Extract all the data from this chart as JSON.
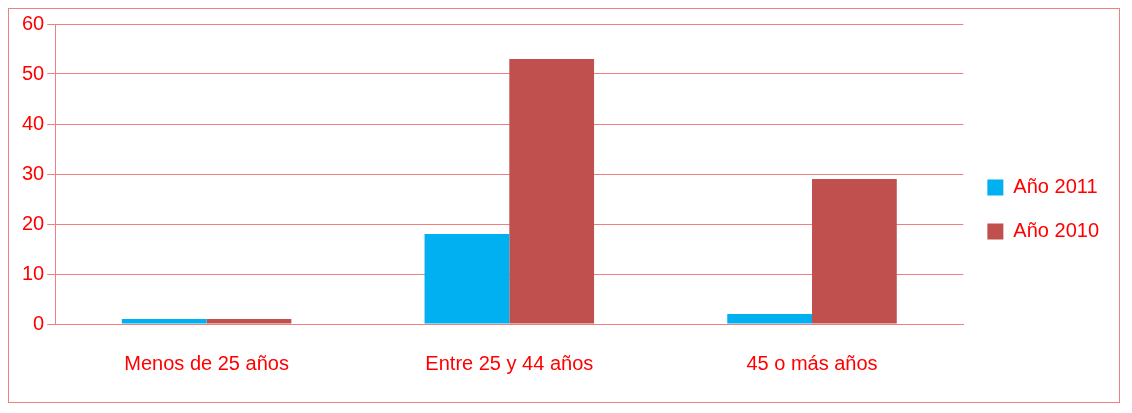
{
  "chart_data": {
    "type": "bar",
    "categories": [
      "Menos de 25 años",
      "Entre 25 y 44 años",
      "45 o más años"
    ],
    "series": [
      {
        "name": "Año 2011",
        "color": "#00b0f0",
        "values": [
          1,
          18,
          2
        ]
      },
      {
        "name": "Año 2010",
        "color": "#c0504d",
        "values": [
          1,
          53,
          29
        ]
      }
    ],
    "ylim": [
      0,
      60
    ],
    "yticks": [
      0,
      10,
      20,
      30,
      40,
      50,
      60
    ],
    "grid": "y",
    "legend": "right"
  }
}
